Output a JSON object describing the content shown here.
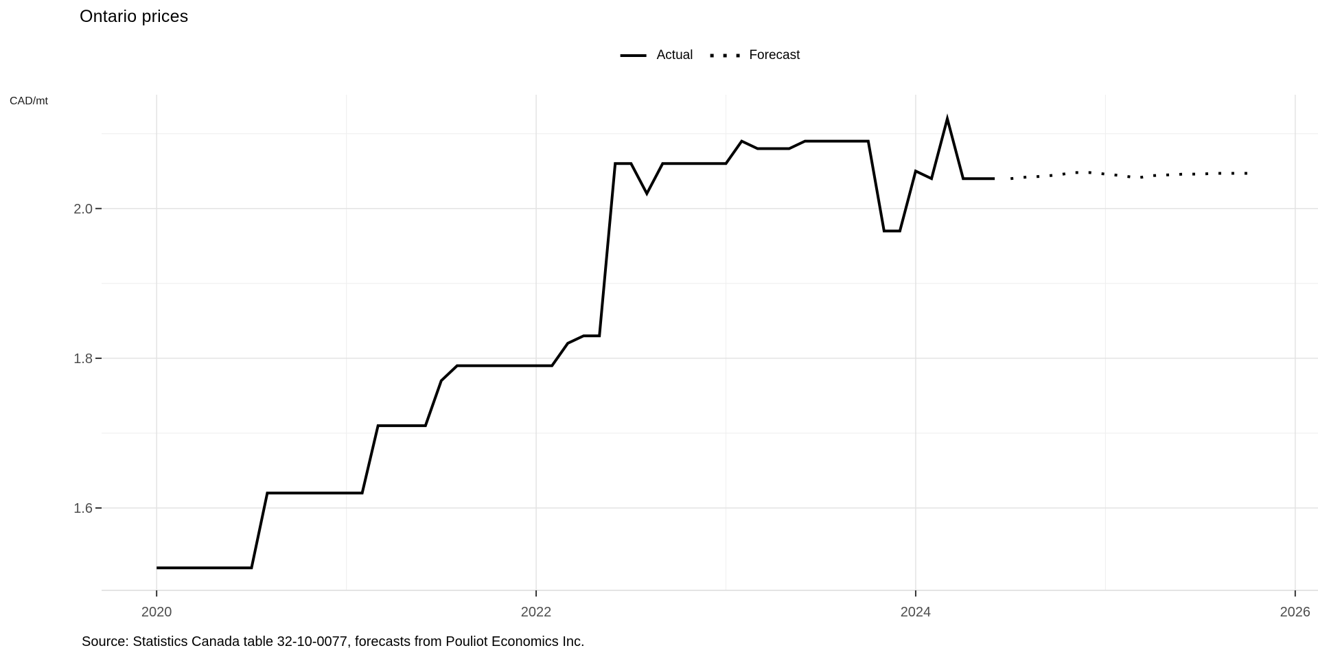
{
  "title": "Ontario prices",
  "legend": {
    "actual_label": "Actual",
    "forecast_label": "Forecast"
  },
  "source_note": "Source: Statistics Canada table 32-10-0077, forecasts from Pouliot Economics Inc.",
  "colors": {
    "line": "#000000",
    "grid_major": "#e3e3e3",
    "grid_minor": "#f0f0f0",
    "axis_line": "#dcdcdc",
    "tick_mark": "#333333",
    "tick_text": "#4d4d4d",
    "background": "#ffffff"
  },
  "chart_data": {
    "type": "line",
    "title": "Ontario prices",
    "ylabel": "CAD/mt",
    "xlabel": "",
    "grid": true,
    "legend_position": "top-center",
    "xlim": [
      2019.71,
      2026.12
    ],
    "ylim": [
      1.49,
      2.152
    ],
    "x_ticks": [
      {
        "v": 2020,
        "label": "2020"
      },
      {
        "v": 2022,
        "label": "2022"
      },
      {
        "v": 2024,
        "label": "2024"
      },
      {
        "v": 2026,
        "label": "2026"
      }
    ],
    "x_minor_ticks": [
      2021,
      2023,
      2025
    ],
    "y_ticks": [
      {
        "v": 1.6,
        "label": "1.6"
      },
      {
        "v": 1.8,
        "label": "1.8"
      },
      {
        "v": 2.0,
        "label": "2.0"
      }
    ],
    "y_minor_ticks": [
      1.7,
      1.9,
      2.1
    ],
    "series": [
      {
        "name": "Actual",
        "style": "solid",
        "points": [
          [
            "2020-01",
            1.52
          ],
          [
            "2020-02",
            1.52
          ],
          [
            "2020-03",
            1.52
          ],
          [
            "2020-04",
            1.52
          ],
          [
            "2020-05",
            1.52
          ],
          [
            "2020-06",
            1.52
          ],
          [
            "2020-07",
            1.52
          ],
          [
            "2020-08",
            1.62
          ],
          [
            "2020-09",
            1.62
          ],
          [
            "2020-10",
            1.62
          ],
          [
            "2020-11",
            1.62
          ],
          [
            "2020-12",
            1.62
          ],
          [
            "2021-01",
            1.62
          ],
          [
            "2021-02",
            1.62
          ],
          [
            "2021-03",
            1.71
          ],
          [
            "2021-04",
            1.71
          ],
          [
            "2021-05",
            1.71
          ],
          [
            "2021-06",
            1.71
          ],
          [
            "2021-07",
            1.77
          ],
          [
            "2021-08",
            1.79
          ],
          [
            "2021-09",
            1.79
          ],
          [
            "2021-10",
            1.79
          ],
          [
            "2021-11",
            1.79
          ],
          [
            "2021-12",
            1.79
          ],
          [
            "2022-01",
            1.79
          ],
          [
            "2022-02",
            1.79
          ],
          [
            "2022-03",
            1.82
          ],
          [
            "2022-04",
            1.83
          ],
          [
            "2022-05",
            1.83
          ],
          [
            "2022-06",
            2.06
          ],
          [
            "2022-07",
            2.06
          ],
          [
            "2022-08",
            2.02
          ],
          [
            "2022-09",
            2.06
          ],
          [
            "2022-10",
            2.06
          ],
          [
            "2022-11",
            2.06
          ],
          [
            "2022-12",
            2.06
          ],
          [
            "2023-01",
            2.06
          ],
          [
            "2023-02",
            2.09
          ],
          [
            "2023-03",
            2.08
          ],
          [
            "2023-04",
            2.08
          ],
          [
            "2023-05",
            2.08
          ],
          [
            "2023-06",
            2.09
          ],
          [
            "2023-07",
            2.09
          ],
          [
            "2023-08",
            2.09
          ],
          [
            "2023-09",
            2.09
          ],
          [
            "2023-10",
            2.09
          ],
          [
            "2023-11",
            1.97
          ],
          [
            "2023-12",
            1.97
          ],
          [
            "2024-01",
            2.05
          ],
          [
            "2024-02",
            2.04
          ],
          [
            "2024-03",
            2.12
          ],
          [
            "2024-04",
            2.04
          ],
          [
            "2024-05",
            2.04
          ],
          [
            "2024-06",
            2.04
          ]
        ]
      },
      {
        "name": "Forecast",
        "style": "dotted",
        "points": [
          [
            "2024-07",
            2.04
          ],
          [
            "2024-08",
            2.042
          ],
          [
            "2024-09",
            2.043
          ],
          [
            "2024-10",
            2.045
          ],
          [
            "2024-11",
            2.048
          ],
          [
            "2024-12",
            2.048
          ],
          [
            "2025-01",
            2.046
          ],
          [
            "2025-02",
            2.044
          ],
          [
            "2025-03",
            2.041
          ],
          [
            "2025-04",
            2.044
          ],
          [
            "2025-05",
            2.045
          ],
          [
            "2025-06",
            2.046
          ],
          [
            "2025-07",
            2.046
          ],
          [
            "2025-08",
            2.047
          ],
          [
            "2025-09",
            2.047
          ],
          [
            "2025-10",
            2.047
          ]
        ]
      }
    ]
  }
}
